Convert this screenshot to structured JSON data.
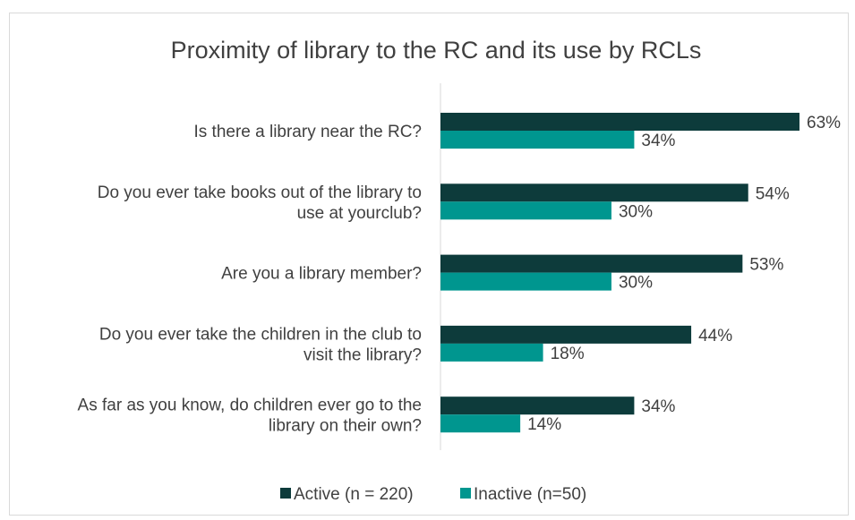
{
  "chart_data": {
    "type": "bar",
    "orientation": "horizontal",
    "title": "Proximity of library to the RC and its use by RCLs",
    "categories": [
      [
        "Is there a library near the RC?"
      ],
      [
        "Do you ever take books out of the library to",
        "use at yourclub?"
      ],
      [
        "Are you a library member?"
      ],
      [
        "Do you ever take the children in the club to",
        "visit the library?"
      ],
      [
        "As far as you know, do children ever go to the",
        "library on their own?"
      ]
    ],
    "series": [
      {
        "name": "Active (n = 220)",
        "color": "#0d3b3b",
        "values": [
          63,
          54,
          53,
          44,
          34
        ],
        "labels": [
          "63%",
          "54%",
          "53%",
          "44%",
          "34%"
        ]
      },
      {
        "name": "Inactive (n=50)",
        "color": "#00968f",
        "values": [
          34,
          30,
          30,
          18,
          14
        ],
        "labels": [
          "34%",
          "30%",
          "30%",
          "18%",
          "14%"
        ]
      }
    ],
    "xlim": [
      0,
      63
    ],
    "value_unit": "%",
    "legend_position": "bottom",
    "grid": false
  }
}
